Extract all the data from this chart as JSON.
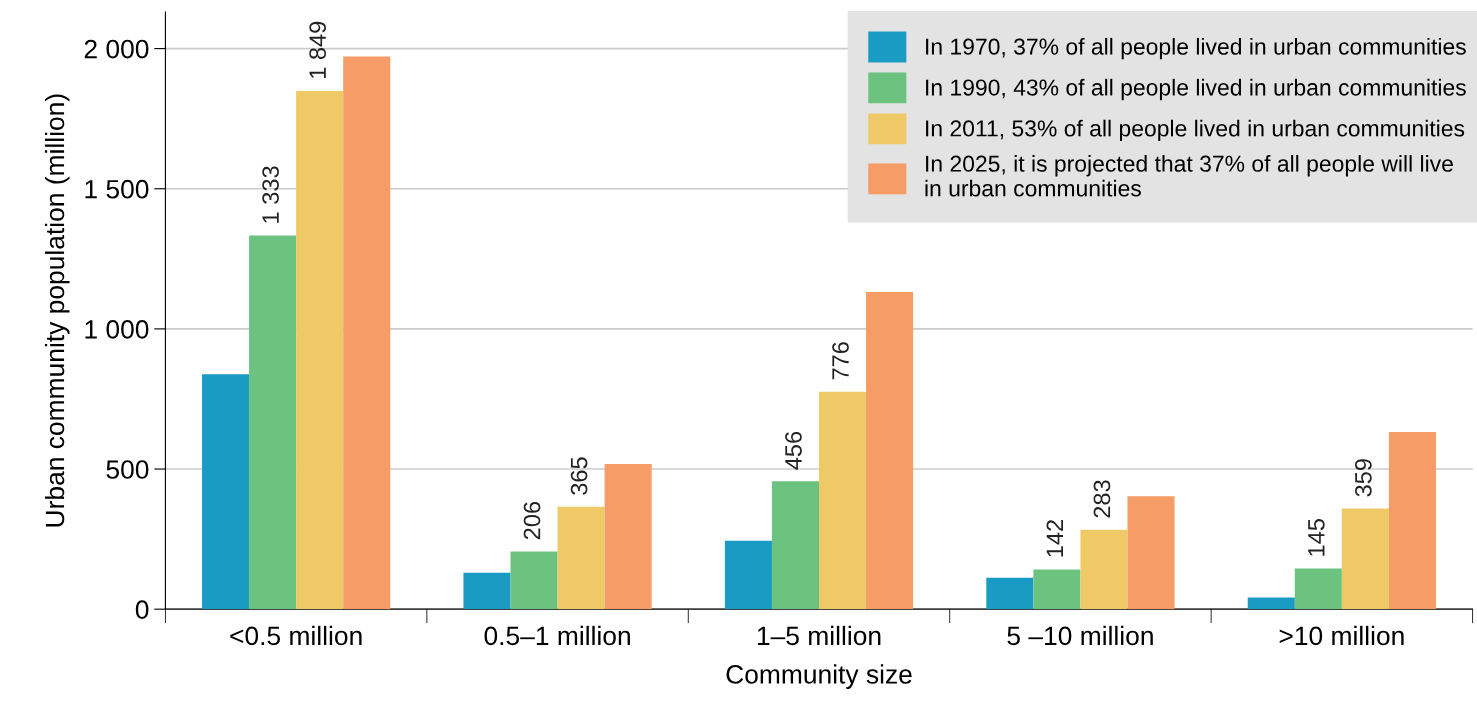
{
  "chart_data": {
    "type": "bar",
    "xlabel": "Community size",
    "ylabel": "Urban community population (million)",
    "categories": [
      "<0.5 million",
      "0.5–1 million",
      "1–5 million",
      "5 –10 million",
      ">10 million"
    ],
    "series": [
      {
        "name": "In 1970, 37% of all people lived in urban communities",
        "color": "#1a9bc4",
        "values": [
          838,
          130,
          244,
          112,
          42
        ]
      },
      {
        "name": "In 1990, 43% of all people lived in urban communities",
        "color": "#6cc27f",
        "values": [
          1333,
          206,
          456,
          142,
          145
        ],
        "value_labels": [
          "1 333",
          "206",
          "456",
          "142",
          "145"
        ]
      },
      {
        "name": "In 2011, 53% of all people lived in urban communities",
        "color": "#efc966",
        "values": [
          1849,
          365,
          776,
          283,
          359
        ],
        "value_labels": [
          "1 849",
          "365",
          "776",
          "283",
          "359"
        ]
      },
      {
        "name": "In 2025, it is projected that 37% of all people will live\nin urban communities",
        "color": "#f69c66",
        "values": [
          1972,
          518,
          1132,
          403,
          632
        ]
      }
    ],
    "ylim": [
      0,
      2130
    ],
    "yticks": [
      0,
      500,
      {
        "value": 1000,
        "label": "1 000"
      },
      {
        "value": 1500,
        "label": "1 500"
      },
      {
        "value": 2000,
        "label": "2 000"
      }
    ],
    "grid": "y",
    "legend": "top right"
  }
}
